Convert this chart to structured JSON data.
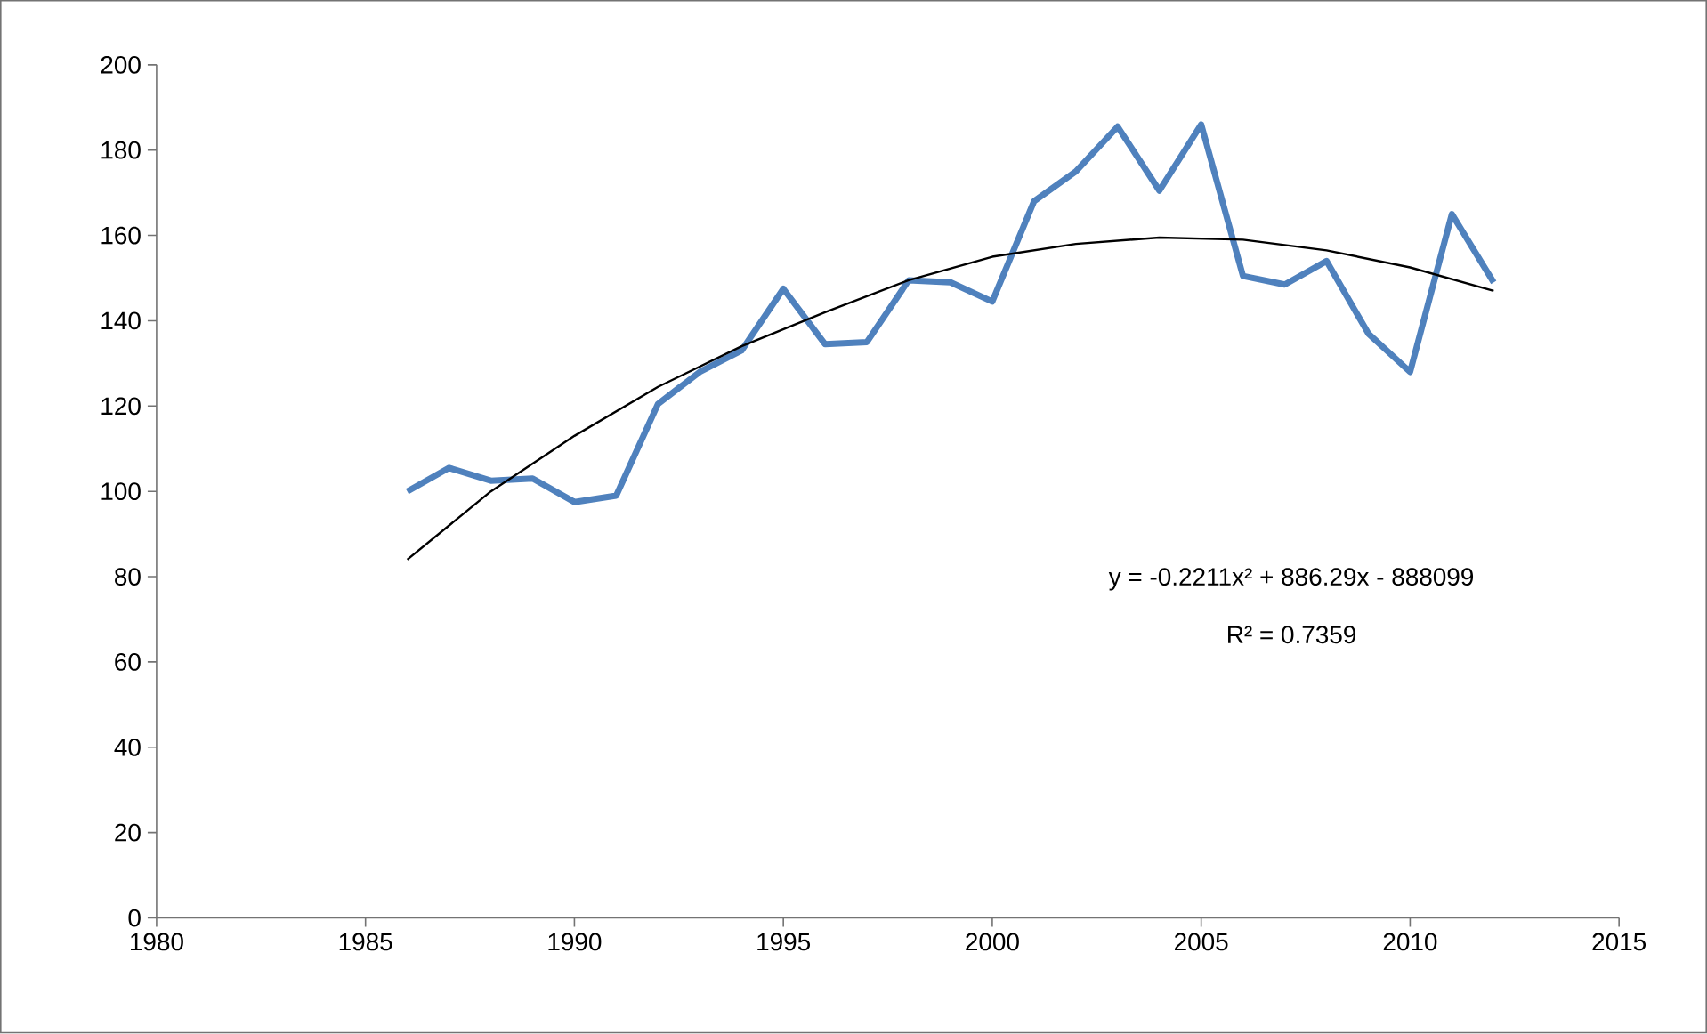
{
  "chart_data": {
    "type": "line",
    "x": [
      1986,
      1987,
      1988,
      1989,
      1990,
      1991,
      1992,
      1993,
      1994,
      1995,
      1996,
      1997,
      1998,
      1999,
      2000,
      2001,
      2002,
      2003,
      2004,
      2005,
      2006,
      2007,
      2008,
      2009,
      2010,
      2011,
      2012
    ],
    "series": [
      {
        "color": "#4f81bd",
        "values": [
          100,
          105.5,
          102.5,
          103,
          97.5,
          99,
          120.5,
          128,
          133,
          147.5,
          134.5,
          135,
          149.5,
          149,
          144.5,
          168,
          175,
          185.5,
          170.5,
          186,
          150.5,
          148.5,
          154,
          137,
          128,
          165,
          149
        ]
      },
      {
        "type": "line",
        "color": "#000000",
        "x": [
          1986,
          1988,
          1990,
          1992,
          1994,
          1996,
          1998,
          2000,
          2002,
          2004,
          2006,
          2008,
          2010,
          2012
        ],
        "values": [
          84,
          100,
          113,
          124.5,
          134,
          142,
          149.5,
          155,
          158,
          159.5,
          159,
          156.5,
          152.5,
          147
        ]
      }
    ],
    "xlim": [
      1980,
      2015
    ],
    "xticks": [
      1980,
      1985,
      1990,
      1995,
      2000,
      2005,
      2010,
      2015
    ],
    "ylim": [
      0,
      200
    ],
    "yticks": [
      0,
      20,
      40,
      60,
      80,
      100,
      120,
      140,
      160,
      180,
      200
    ],
    "annotations": [
      "y = -0.2211x² + 886.29x - 888099",
      "R² = 0.7359"
    ]
  }
}
